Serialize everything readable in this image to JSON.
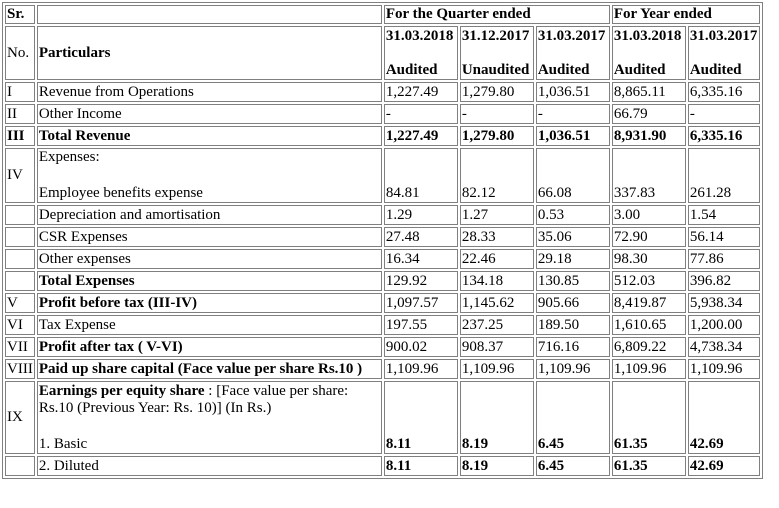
{
  "header": {
    "sr": "Sr.",
    "no": "No.",
    "particulars": "Particulars",
    "quarter_group": "For the Quarter ended",
    "year_group": "For Year ended",
    "periods": [
      {
        "date": "31.03.2018",
        "status": "Audited"
      },
      {
        "date": "31.12.2017",
        "status": "Unaudited"
      },
      {
        "date": "31.03.2017",
        "status": "Audited"
      },
      {
        "date": "31.03.2018",
        "status": "Audited"
      },
      {
        "date": "31.03.2017",
        "status": "Audited"
      }
    ]
  },
  "rows": [
    {
      "sr": "I",
      "label": "Revenue from Operations",
      "values": [
        "1,227.49",
        "1,279.80",
        "1,036.51",
        "8,865.11",
        "6,335.16"
      ]
    },
    {
      "sr": "II",
      "label": "Other Income",
      "values": [
        "-",
        "-",
        "-",
        "66.79",
        "-"
      ]
    },
    {
      "sr": "III",
      "label": "Total Revenue",
      "values": [
        "1,227.49",
        "1,279.80",
        "1,036.51",
        "8,931.90",
        "6,335.16"
      ]
    },
    {
      "sr": "IV",
      "label": "Expenses:",
      "sublabel": "Employee benefits expense",
      "values": [
        "84.81",
        "82.12",
        "66.08",
        "337.83",
        "261.28"
      ]
    },
    {
      "sr": "",
      "label": "Depreciation and amortisation",
      "values": [
        "1.29",
        "1.27",
        "0.53",
        "3.00",
        "1.54"
      ]
    },
    {
      "sr": "",
      "label": "CSR Expenses",
      "values": [
        "27.48",
        "28.33",
        "35.06",
        "72.90",
        "56.14"
      ]
    },
    {
      "sr": "",
      "label": "Other expenses",
      "values": [
        "16.34",
        "22.46",
        "29.18",
        "98.30",
        "77.86"
      ]
    },
    {
      "sr": "",
      "label": "Total Expenses",
      "values": [
        "129.92",
        "134.18",
        "130.85",
        "512.03",
        "396.82"
      ]
    },
    {
      "sr": "V",
      "label": "Profit before tax (III-IV)",
      "values": [
        "1,097.57",
        "1,145.62",
        "905.66",
        "8,419.87",
        "5,938.34"
      ]
    },
    {
      "sr": "VI",
      "label": "Tax Expense",
      "values": [
        "197.55",
        "237.25",
        "189.50",
        "1,610.65",
        "1,200.00"
      ]
    },
    {
      "sr": "VII",
      "label": "Profit after tax ( V-VI)",
      "values": [
        "900.02",
        "908.37",
        "716.16",
        "6,809.22",
        "4,738.34"
      ]
    },
    {
      "sr": "VIII",
      "label": "Paid up share capital (Face value per share Rs.10 )",
      "values": [
        "1,109.96",
        "1,109.96",
        "1,109.96",
        "1,109.96",
        "1,109.96"
      ]
    },
    {
      "sr": "IX",
      "label_bold": "Earnings per equity share",
      "label_rest": " : [Face value per share: Rs.10 (Previous Year: Rs. 10)] (In Rs.)",
      "sublabel": "1. Basic",
      "values": [
        "8.11",
        "8.19",
        "6.45",
        "61.35",
        "42.69"
      ]
    },
    {
      "sr": "",
      "label": "2. Diluted",
      "values": [
        "8.11",
        "8.19",
        "6.45",
        "61.35",
        "42.69"
      ]
    }
  ]
}
